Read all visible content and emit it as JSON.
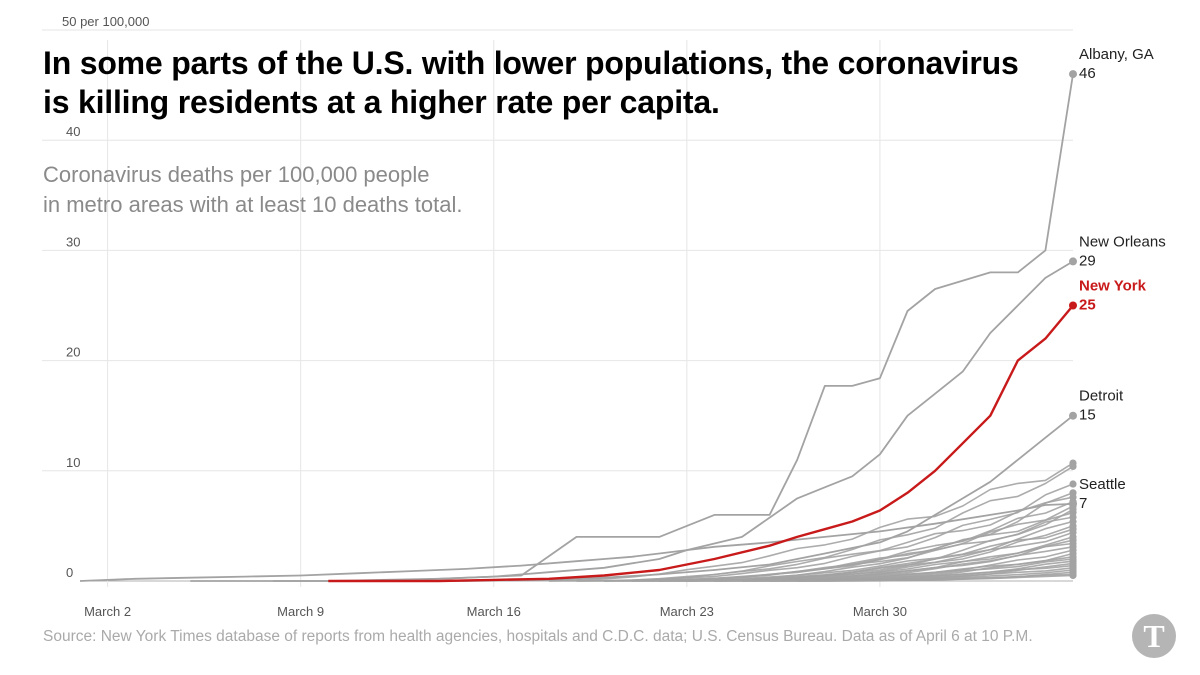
{
  "title": "In some parts of the U.S. with lower populations, the coronavirus is killing residents at a higher rate per capita.",
  "subtitle_lines": [
    "Coronavirus deaths per 100,000 people",
    "in metro areas with at least 10 deaths total."
  ],
  "source": "Source: New York Times database of reports from health agencies, hospitals and C.D.C. data; U.S. Census Bureau. Data as of April 6 at 10 P.M.",
  "logo_text": "T",
  "colors": {
    "highlight": "#c81a1a",
    "series": "#a3a3a3",
    "grid": "#e6e6e6",
    "axis_text": "#555555"
  },
  "chart_data": {
    "type": "line",
    "title": "In some parts of the U.S. with lower populations, the coronavirus is killing residents at a higher rate per capita.",
    "subtitle": "Coronavirus deaths per 100,000 people in metro areas with at least 10 deaths total.",
    "xlabel": "",
    "ylabel": "",
    "x_ticks": [
      {
        "day": 2,
        "label": "March 2"
      },
      {
        "day": 9,
        "label": "March 9"
      },
      {
        "day": 16,
        "label": "March 16"
      },
      {
        "day": 23,
        "label": "March 23"
      },
      {
        "day": 30,
        "label": "March 30"
      }
    ],
    "y_ticks": [
      {
        "value": 0,
        "label": "0"
      },
      {
        "value": 10,
        "label": "10"
      },
      {
        "value": 20,
        "label": "20"
      },
      {
        "value": 30,
        "label": "30"
      },
      {
        "value": 40,
        "label": "40"
      },
      {
        "value": 50,
        "label": "50 per 100,000"
      }
    ],
    "xlim": [
      1,
      37
    ],
    "ylim": [
      0,
      50
    ],
    "grid": true,
    "labeled_series": [
      {
        "name": "Albany, GA",
        "label_name": "Albany, GA",
        "label_value": "46",
        "highlight": false,
        "x": [
          8,
          12,
          17,
          19,
          22,
          23,
          24,
          26,
          27,
          28,
          29,
          30,
          31,
          32,
          34,
          35,
          36,
          37
        ],
        "y": [
          0,
          0,
          0.5,
          4,
          4,
          5,
          6,
          6,
          11,
          17.7,
          17.7,
          18.4,
          24.5,
          26.5,
          28,
          28,
          30,
          46
        ]
      },
      {
        "name": "New Orleans",
        "label_name": "New Orleans",
        "label_value": "29",
        "highlight": false,
        "x": [
          5,
          10,
          14,
          16,
          18,
          20,
          22,
          23,
          25,
          27,
          28,
          29,
          30,
          31,
          32,
          33,
          34,
          35,
          36,
          37
        ],
        "y": [
          0,
          0,
          0.2,
          0.4,
          0.8,
          1.2,
          2,
          2.8,
          4,
          7.5,
          8.5,
          9.5,
          11.5,
          15,
          17,
          19,
          22.5,
          25,
          27.5,
          29
        ]
      },
      {
        "name": "New York",
        "label_name": "New York",
        "label_value": "25",
        "highlight": true,
        "x": [
          10,
          14,
          16,
          18,
          20,
          22,
          24,
          26,
          27,
          28,
          29,
          30,
          31,
          32,
          33,
          34,
          35,
          36,
          37
        ],
        "y": [
          0,
          0,
          0.1,
          0.2,
          0.5,
          1,
          2,
          3.2,
          4,
          4.7,
          5.4,
          6.4,
          8,
          10,
          12.5,
          15,
          20,
          22,
          25
        ]
      },
      {
        "name": "Detroit",
        "label_name": "Detroit",
        "label_value": "15",
        "highlight": false,
        "x": [
          10,
          15,
          18,
          20,
          22,
          24,
          26,
          28,
          30,
          31,
          32,
          33,
          34,
          35,
          36,
          37
        ],
        "y": [
          0,
          0,
          0.1,
          0.3,
          0.6,
          1,
          1.5,
          2.5,
          3.5,
          4.5,
          6,
          7.5,
          9,
          11,
          13,
          15
        ]
      },
      {
        "name": "Seattle",
        "label_name": "Seattle",
        "label_value": "7",
        "highlight": false,
        "x": [
          1,
          2,
          3,
          5,
          7,
          9,
          11,
          13,
          15,
          17,
          19,
          20,
          21,
          22,
          23,
          24,
          26,
          28,
          30,
          32,
          34,
          35,
          36,
          37
        ],
        "y": [
          0,
          0.1,
          0.2,
          0.3,
          0.4,
          0.5,
          0.7,
          0.9,
          1.1,
          1.4,
          1.8,
          2,
          2.2,
          2.5,
          2.8,
          3.1,
          3.5,
          4,
          4.5,
          5.2,
          6,
          6.4,
          6.9,
          7
        ]
      }
    ],
    "other_series": [
      {
        "end": 10.7,
        "start_x": 18
      },
      {
        "end": 10.4,
        "start_x": 19
      },
      {
        "end": 8.8,
        "start_x": 18
      },
      {
        "end": 8.0,
        "start_x": 20
      },
      {
        "end": 7.6,
        "start_x": 20
      },
      {
        "end": 7.2,
        "start_x": 21
      },
      {
        "end": 6.8,
        "start_x": 19
      },
      {
        "end": 6.5,
        "start_x": 21
      },
      {
        "end": 6.2,
        "start_x": 22
      },
      {
        "end": 5.8,
        "start_x": 20
      },
      {
        "end": 5.4,
        "start_x": 22
      },
      {
        "end": 5.0,
        "start_x": 21
      },
      {
        "end": 4.7,
        "start_x": 23
      },
      {
        "end": 4.4,
        "start_x": 22
      },
      {
        "end": 4.0,
        "start_x": 23
      },
      {
        "end": 3.7,
        "start_x": 22
      },
      {
        "end": 3.4,
        "start_x": 24
      },
      {
        "end": 3.1,
        "start_x": 23
      },
      {
        "end": 2.8,
        "start_x": 24
      },
      {
        "end": 2.5,
        "start_x": 24
      },
      {
        "end": 2.2,
        "start_x": 25
      },
      {
        "end": 2.0,
        "start_x": 24
      },
      {
        "end": 1.8,
        "start_x": 25
      },
      {
        "end": 1.6,
        "start_x": 25
      },
      {
        "end": 1.4,
        "start_x": 26
      },
      {
        "end": 1.2,
        "start_x": 26
      },
      {
        "end": 1.0,
        "start_x": 26
      },
      {
        "end": 0.8,
        "start_x": 27
      },
      {
        "end": 0.6,
        "start_x": 27
      },
      {
        "end": 0.5,
        "start_x": 27
      }
    ]
  }
}
